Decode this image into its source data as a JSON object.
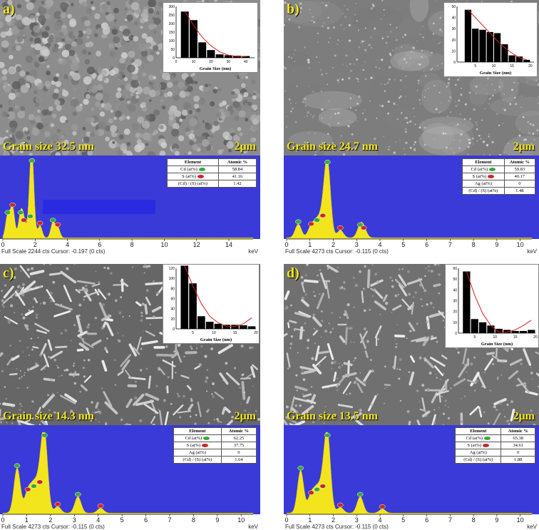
{
  "panels": [
    {
      "id": "a",
      "label": "a)",
      "grain_text": "Grain size 32.5 nm",
      "scale_bar": "2μm",
      "footer": "Full Scale 2244 cts Cursor: -0.197  (0 cts)",
      "kev_label": "keV",
      "eds_ticks": [
        "0",
        "2",
        "4",
        "6",
        "8",
        "10",
        "12",
        "14"
      ],
      "eds_xmax": 15.5,
      "table": {
        "headers": [
          "Element",
          "Atomic %"
        ],
        "rows": [
          {
            "name": "Cd (at%)",
            "value": "58.84",
            "dot": "green"
          },
          {
            "name": "S (at%)",
            "value": "41.16",
            "dot": "red"
          },
          {
            "name": "(Cd) / (S) (at%)",
            "value": "1.42",
            "dot": ""
          }
        ]
      }
    },
    {
      "id": "b",
      "label": "b)",
      "grain_text": "Grain size 24.7 nm",
      "scale_bar": "2μm",
      "footer": "Full Scale 4273 cts Cursor: -0.115  (0 cts)",
      "kev_label": "keV",
      "eds_ticks": [
        "0",
        "1",
        "2",
        "3",
        "4",
        "5",
        "6",
        "7",
        "8",
        "9",
        "10"
      ],
      "eds_xmax": 10.5,
      "table": {
        "headers": [
          "Element",
          "Atomic %"
        ],
        "rows": [
          {
            "name": "Cd (at%)",
            "value": "59.83",
            "dot": "green"
          },
          {
            "name": "S (at%)",
            "value": "40.17",
            "dot": "red"
          },
          {
            "name": "Ag (at%)",
            "value": "0",
            "dot": ""
          },
          {
            "name": "(Cd) / (S) (at%)",
            "value": "1.48",
            "dot": ""
          }
        ]
      }
    },
    {
      "id": "c",
      "label": "c)",
      "grain_text": "Grain size 14.3 nm",
      "scale_bar": "2μm",
      "footer": "Full Scale 4273 cts Cursor: -0.115  (0 cts)",
      "kev_label": "keV",
      "eds_ticks": [
        "0",
        "1",
        "2",
        "3",
        "4",
        "5",
        "6",
        "7",
        "8",
        "9",
        "10"
      ],
      "eds_xmax": 10.5,
      "table": {
        "headers": [
          "Element",
          "Atomic %"
        ],
        "rows": [
          {
            "name": "Cd (at%)",
            "value": "62.25",
            "dot": "green"
          },
          {
            "name": "S (at%)",
            "value": "37.75",
            "dot": "red"
          },
          {
            "name": "Ag (at%)",
            "value": "0",
            "dot": ""
          },
          {
            "name": "(Cd) / (S) (at%)",
            "value": "1.64",
            "dot": ""
          }
        ]
      }
    },
    {
      "id": "d",
      "label": "d)",
      "grain_text": "Grain size 13.5 nm",
      "scale_bar": "2μm",
      "footer": "Full Scale 4273 cts Cursor: -0.115  (0 cts)",
      "kev_label": "keV",
      "eds_ticks": [
        "0",
        "1",
        "2",
        "3",
        "4",
        "5",
        "6",
        "7",
        "8",
        "9",
        "10"
      ],
      "eds_xmax": 10.5,
      "table": {
        "headers": [
          "Element",
          "Atomic %"
        ],
        "rows": [
          {
            "name": "Cd (at%)",
            "value": "65.38",
            "dot": "green"
          },
          {
            "name": "S (at%)",
            "value": "34.61",
            "dot": "red"
          },
          {
            "name": "Ag (at%)",
            "value": "0",
            "dot": ""
          },
          {
            "name": "(Cd) / (S) (at%)",
            "value": "1.88",
            "dot": ""
          }
        ]
      }
    }
  ],
  "chart_data": [
    {
      "type": "bar",
      "panel": "a",
      "xlabel": "Grain Size (nm)",
      "x": [
        5,
        10,
        15,
        20,
        25,
        30,
        35,
        40
      ],
      "values": [
        270,
        220,
        90,
        45,
        20,
        15,
        12,
        10
      ],
      "fit": [
        270,
        190,
        120,
        70,
        35,
        15,
        8,
        8
      ],
      "xlim": [
        0,
        45
      ],
      "ylim": [
        0,
        300
      ],
      "xticks": [
        0,
        10,
        20,
        30,
        40
      ],
      "yticks": [
        0,
        50,
        100,
        150,
        200,
        250,
        300
      ]
    },
    {
      "type": "bar",
      "panel": "b",
      "xlabel": "Grain Size (nm)",
      "x": [
        3,
        5,
        7,
        9,
        11,
        13,
        15,
        17,
        19
      ],
      "values": [
        47,
        30,
        29,
        27,
        26,
        16,
        6,
        5,
        2
      ],
      "fit": [
        47,
        40,
        33,
        26,
        19,
        13,
        8,
        4,
        2
      ],
      "xlim": [
        0,
        21
      ],
      "ylim": [
        0,
        50
      ],
      "xticks": [
        5,
        10,
        15,
        20
      ],
      "yticks": [
        0,
        10,
        20,
        30,
        40,
        50
      ]
    },
    {
      "type": "bar",
      "panel": "c",
      "xlabel": "Grain Size (nm)",
      "x": [
        3,
        5,
        7,
        9,
        11,
        13,
        15,
        17,
        19
      ],
      "values": [
        125,
        90,
        25,
        14,
        10,
        8,
        8,
        7,
        5
      ],
      "fit": [
        125,
        85,
        50,
        25,
        12,
        5,
        5,
        10,
        22
      ],
      "xlim": [
        1,
        20
      ],
      "ylim": [
        0,
        120
      ],
      "xticks": [
        5,
        10,
        15,
        20
      ],
      "yticks": [
        0,
        20,
        40,
        60,
        80,
        100,
        120
      ]
    },
    {
      "type": "bar",
      "panel": "d",
      "xlabel": "Grain Size (nm)",
      "x": [
        3,
        5,
        7,
        9,
        11,
        13,
        15,
        17,
        19
      ],
      "values": [
        57,
        13,
        10,
        7,
        4,
        3,
        2,
        2,
        3
      ],
      "fit": [
        57,
        35,
        18,
        7,
        1,
        1,
        3,
        7,
        12
      ],
      "xlim": [
        1,
        20
      ],
      "ylim": [
        0,
        60
      ],
      "xticks": [
        5,
        10,
        15,
        20
      ],
      "yticks": [
        0,
        10,
        20,
        30,
        40,
        50,
        60
      ]
    }
  ],
  "eds_spectra": [
    {
      "panel": "a",
      "peaks": [
        {
          "e": 0.3,
          "h": 0.3
        },
        {
          "e": 0.6,
          "h": 0.4
        },
        {
          "e": 1.1,
          "h": 0.3
        },
        {
          "e": 1.3,
          "h": 0.2
        },
        {
          "e": 1.7,
          "h": 0.25
        },
        {
          "e": 2.3,
          "h": 0.16
        },
        {
          "e": 3.1,
          "h": 0.2
        },
        {
          "e": 3.4,
          "h": 0.14
        },
        {
          "e": 1.8,
          "h": 0.98
        }
      ]
    },
    {
      "panel": "b",
      "peaks": [
        {
          "e": 0.5,
          "h": 0.18
        },
        {
          "e": 1.05,
          "h": 0.15
        },
        {
          "e": 1.3,
          "h": 0.2
        },
        {
          "e": 1.55,
          "h": 0.26
        },
        {
          "e": 1.75,
          "h": 0.96
        },
        {
          "e": 2.3,
          "h": 0.1
        },
        {
          "e": 3.15,
          "h": 0.14
        },
        {
          "e": 3.3,
          "h": 0.1
        }
      ]
    },
    {
      "panel": "c",
      "peaks": [
        {
          "e": 0.6,
          "h": 0.55
        },
        {
          "e": 1.05,
          "h": 0.26
        },
        {
          "e": 1.3,
          "h": 0.3
        },
        {
          "e": 1.55,
          "h": 0.35
        },
        {
          "e": 1.75,
          "h": 0.92
        },
        {
          "e": 2.3,
          "h": 0.08
        },
        {
          "e": 3.15,
          "h": 0.2
        },
        {
          "e": 4.1,
          "h": 0.06
        }
      ]
    },
    {
      "panel": "d",
      "peaks": [
        {
          "e": 0.6,
          "h": 0.52
        },
        {
          "e": 1.05,
          "h": 0.22
        },
        {
          "e": 1.3,
          "h": 0.26
        },
        {
          "e": 1.55,
          "h": 0.3
        },
        {
          "e": 1.75,
          "h": 0.92
        },
        {
          "e": 2.3,
          "h": 0.07
        },
        {
          "e": 3.15,
          "h": 0.2
        },
        {
          "e": 4.1,
          "h": 0.05
        }
      ]
    }
  ],
  "colors": {
    "eds_bg": "#3a3ad8",
    "spectrum": "#f2e51e",
    "label": "#f2e51e",
    "fit": "#d42020",
    "bar": "#000000"
  }
}
